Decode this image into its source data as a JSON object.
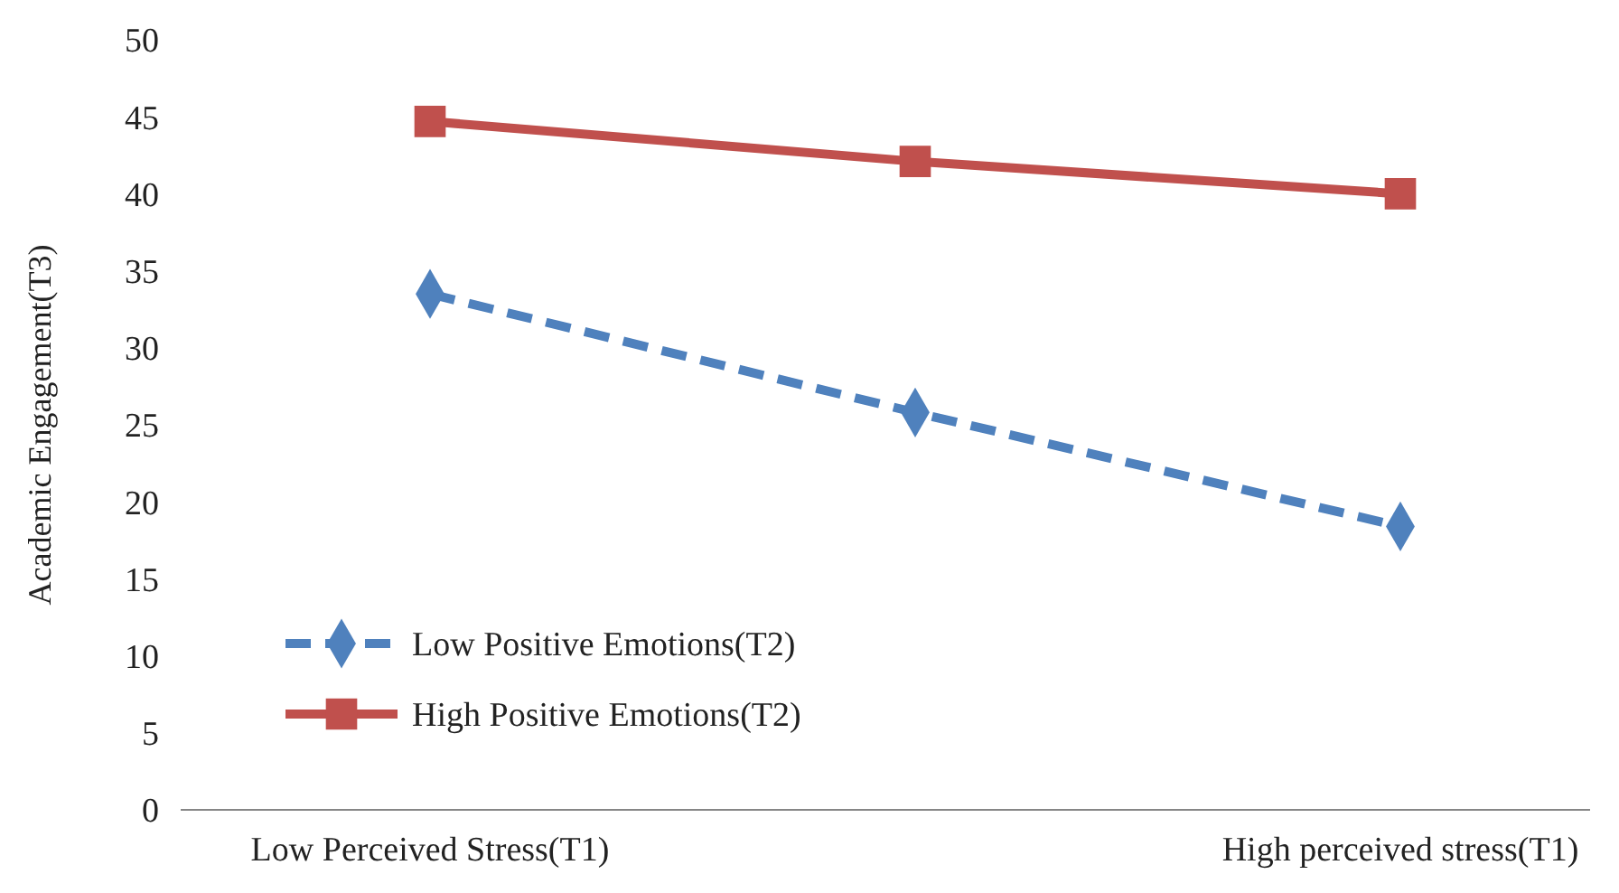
{
  "chart_data": {
    "type": "line",
    "ylabel": "Academic Engagement(T3)",
    "categories": [
      "Low Perceived Stress(T1)",
      null,
      "High perceived stress(T1)"
    ],
    "series": [
      {
        "name": "Low Positive Emotions(T2)",
        "color": "#4f81bd",
        "values": [
          33.5,
          25.8,
          18.4
        ],
        "marker": "diamond",
        "line_style": "dashed"
      },
      {
        "name": "High Positive Emotions(T2)",
        "color": "#c0504d",
        "values": [
          44.7,
          42.1,
          40.0
        ],
        "marker": "square",
        "line_style": "solid"
      }
    ],
    "ylim": [
      0,
      50
    ],
    "yticks": [
      0,
      5,
      10,
      15,
      20,
      25,
      30,
      35,
      40,
      45,
      50
    ],
    "grid": false,
    "legend": "bottom left"
  }
}
